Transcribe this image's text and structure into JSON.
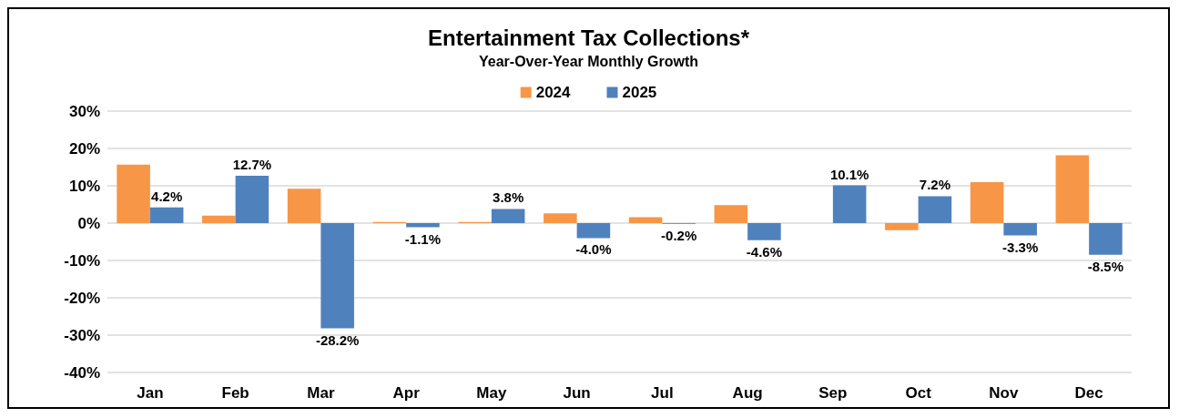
{
  "chart_data": {
    "type": "bar",
    "title": "Entertainment Tax Collections*",
    "subtitle": "Year-Over-Year Monthly Growth",
    "categories": [
      "Jan",
      "Feb",
      "Mar",
      "Apr",
      "May",
      "Jun",
      "Jul",
      "Aug",
      "Sep",
      "Oct",
      "Nov",
      "Dec"
    ],
    "series": [
      {
        "name": "2024",
        "color": "#f79646",
        "values": [
          15.7,
          2.0,
          9.2,
          0.3,
          0.3,
          2.6,
          1.6,
          4.8,
          null,
          -1.9,
          11.0,
          18.2
        ]
      },
      {
        "name": "2025",
        "color": "#4f81bd",
        "values": [
          4.2,
          12.7,
          -28.2,
          -1.1,
          3.8,
          -4.0,
          -0.2,
          -4.6,
          10.1,
          7.2,
          -3.3,
          -8.5
        ],
        "value_labels": [
          "4.2%",
          "12.7%",
          "-28.2%",
          "-1.1%",
          "3.8%",
          "-4.0%",
          "-0.2%",
          "-4.6%",
          "10.1%",
          "7.2%",
          "-3.3%",
          "-8.5%"
        ]
      }
    ],
    "ylim": [
      -40,
      30
    ],
    "yticks": [
      {
        "value": -40,
        "label": "-40%"
      },
      {
        "value": -30,
        "label": "-30%"
      },
      {
        "value": -20,
        "label": "-20%"
      },
      {
        "value": -10,
        "label": "-10%"
      },
      {
        "value": 0,
        "label": "0%"
      },
      {
        "value": 10,
        "label": "10%"
      },
      {
        "value": 20,
        "label": "20%"
      },
      {
        "value": 30,
        "label": "30%"
      }
    ],
    "grid": true,
    "legend": "top"
  }
}
